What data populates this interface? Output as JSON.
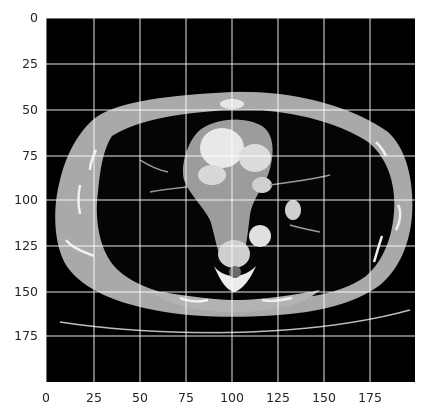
{
  "plot": {
    "x_ticks": [
      "0",
      "25",
      "50",
      "75",
      "100",
      "125",
      "150",
      "175"
    ],
    "y_ticks": [
      "0",
      "25",
      "50",
      "75",
      "100",
      "125",
      "150",
      "175"
    ],
    "xlim": [
      0,
      200
    ],
    "ylim": [
      200,
      0
    ],
    "grid": true,
    "grid_color": "#ffffff",
    "background_color": "#000000"
  },
  "image": {
    "content": "axial chest CT slice",
    "colormap": "gray"
  }
}
